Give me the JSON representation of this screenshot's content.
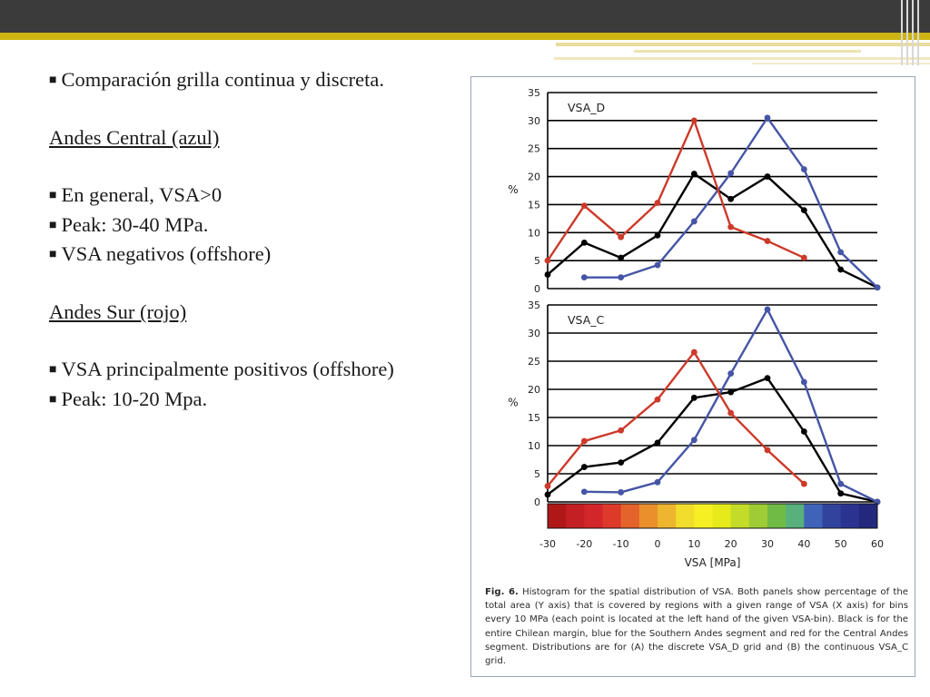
{
  "slide": {
    "colors": {
      "top_bar": "#3b3b3b",
      "accent": "#cdb412"
    },
    "lines": [
      {
        "bullet": true,
        "text": "Comparación grilla continua y discreta.",
        "underline": false
      },
      {
        "bullet": false,
        "text": "",
        "underline": false
      },
      {
        "bullet": false,
        "text": "Andes Central (azul)",
        "underline": true
      },
      {
        "bullet": false,
        "text": "",
        "underline": false
      },
      {
        "bullet": true,
        "text": "En general, VSA>0",
        "underline": false
      },
      {
        "bullet": true,
        "text": "Peak: 30-40 MPa.",
        "underline": false
      },
      {
        "bullet": true,
        "text": "VSA negativos (offshore)",
        "underline": false
      },
      {
        "bullet": false,
        "text": "",
        "underline": false
      },
      {
        "bullet": false,
        "text": "Andes Sur (rojo)",
        "underline": true
      },
      {
        "bullet": false,
        "text": "",
        "underline": false
      },
      {
        "bullet": true,
        "text": "VSA principalmente positivos (offshore)",
        "underline": false
      },
      {
        "bullet": true,
        "text": "Peak: 10-20 Mpa.",
        "underline": false
      }
    ]
  },
  "figure": {
    "caption_label": "Fig. 6.",
    "caption_text": "Histogram for the spatial distribution of VSA. Both panels show percentage of the total area (Y axis) that is covered by regions with a given range of VSA (X axis) for bins every 10 MPa (each point is located at the left hand of the given VSA-bin). Black is for the entire Chilean margin, blue for the Southern Andes segment and red for the Central Andes segment. Distributions are for (A) the discrete VSA_D grid and (B) the continuous VSA_C grid.",
    "colorbar": [
      "#b01818",
      "#c41f22",
      "#d3262a",
      "#dd3a2a",
      "#e4632a",
      "#ea8f2c",
      "#eeb52e",
      "#f2dc2c",
      "#f5ef24",
      "#e6ea1a",
      "#c3dc28",
      "#9fcc34",
      "#70bb46",
      "#58b07c",
      "#3f63b8",
      "#32439e",
      "#2a3490",
      "#24287c"
    ],
    "colorbar_values": [
      -30,
      -25,
      -20,
      -15,
      -10,
      -5,
      0,
      5,
      10,
      15,
      20,
      25,
      30,
      35,
      40,
      45,
      50,
      55
    ]
  },
  "chart_data": [
    {
      "type": "line",
      "title": "VSA_D",
      "ylabel": "%",
      "xlabel": "VSA [MPa]",
      "x": [
        -30,
        -20,
        -10,
        0,
        10,
        20,
        30,
        40,
        50,
        60
      ],
      "ylim": [
        0,
        35
      ],
      "yticks": [
        0,
        5,
        10,
        15,
        20,
        25,
        30,
        35
      ],
      "grid": true,
      "series": [
        {
          "color": "#000000",
          "values": [
            2.5,
            8.2,
            5.5,
            9.5,
            20.5,
            16.0,
            20.0,
            14.0,
            3.4,
            0.2
          ]
        },
        {
          "color": "#4555a6",
          "values": [
            null,
            2.0,
            2.0,
            4.2,
            12.0,
            20.6,
            30.5,
            21.3,
            6.5,
            0.2
          ]
        },
        {
          "color": "#cc3a2a",
          "values": [
            5.0,
            14.8,
            9.2,
            15.3,
            30.0,
            11.0,
            8.5,
            5.5,
            null,
            null
          ]
        }
      ]
    },
    {
      "type": "line",
      "title": "VSA_C",
      "ylabel": "%",
      "xlabel": "VSA [MPa]",
      "x": [
        -30,
        -20,
        -10,
        0,
        10,
        20,
        30,
        40,
        50,
        60
      ],
      "xticks": [
        "-30",
        "-20",
        "-10",
        "0",
        "10",
        "20",
        "30",
        "40",
        "50",
        "60"
      ],
      "ylim": [
        0,
        35
      ],
      "yticks": [
        0,
        5,
        10,
        15,
        20,
        25,
        30,
        35
      ],
      "grid": true,
      "series": [
        {
          "color": "#000000",
          "values": [
            1.3,
            6.2,
            7.0,
            10.5,
            18.5,
            19.5,
            22.0,
            12.5,
            1.5,
            0.0
          ]
        },
        {
          "color": "#4555a6",
          "values": [
            null,
            1.8,
            1.7,
            3.5,
            11.0,
            22.8,
            34.2,
            21.3,
            3.2,
            0.0
          ]
        },
        {
          "color": "#cc3a2a",
          "values": [
            2.8,
            10.8,
            12.7,
            18.2,
            26.6,
            15.8,
            9.2,
            3.2,
            null,
            null
          ]
        }
      ]
    }
  ]
}
